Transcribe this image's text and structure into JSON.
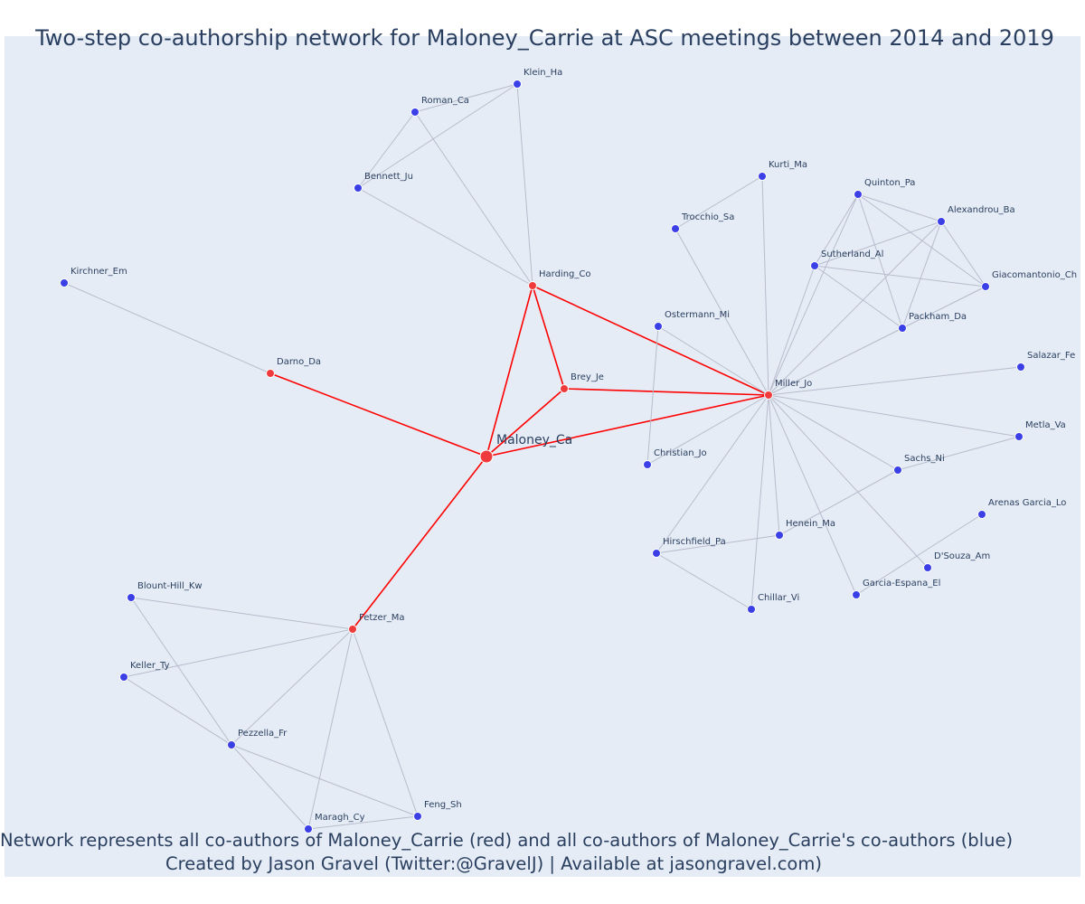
{
  "title": "Two-step co-authorship network for Maloney_Carrie at ASC meetings between 2014 and 2019",
  "footer": {
    "line1": "Network represents all co-authors of Maloney_Carrie (red) and all co-authors of Maloney_Carrie's co-authors (blue)",
    "line2": "Created by Jason Gravel (Twitter:@GravelJ) | Available at jasongravel.com)"
  },
  "colors": {
    "background": "#e5ecf6",
    "ego_edge": "#ff0000",
    "other_edge": "#b8bccc",
    "coauthor_node": "#ef3b3b",
    "second_step_node": "#3b3fe6",
    "text": "#2a3f5f"
  },
  "nodes": [
    {
      "id": "Maloney_Ca",
      "label": "Maloney_Ca",
      "group": "center"
    },
    {
      "id": "Harding_Co",
      "label": "Harding_Co",
      "group": "coauthor"
    },
    {
      "id": "Brey_Je",
      "label": "Brey_Je",
      "group": "coauthor"
    },
    {
      "id": "Miller_Jo",
      "label": "Miller_Jo",
      "group": "coauthor"
    },
    {
      "id": "Darno_Da",
      "label": "Darno_Da",
      "group": "coauthor"
    },
    {
      "id": "Fetzer_Ma",
      "label": "Fetzer_Ma",
      "group": "coauthor"
    },
    {
      "id": "Klein_Ha",
      "label": "Klein_Ha",
      "group": "second"
    },
    {
      "id": "Roman_Ca",
      "label": "Roman_Ca",
      "group": "second"
    },
    {
      "id": "Bennett_Ju",
      "label": "Bennett_Ju",
      "group": "second"
    },
    {
      "id": "Kirchner_Em",
      "label": "Kirchner_Em",
      "group": "second"
    },
    {
      "id": "Kurti_Ma",
      "label": "Kurti_Ma",
      "group": "second"
    },
    {
      "id": "Trocchio_Sa",
      "label": "Trocchio_Sa",
      "group": "second"
    },
    {
      "id": "Quinton_Pa",
      "label": "Quinton_Pa",
      "group": "second"
    },
    {
      "id": "Alexandrou_Ba",
      "label": "Alexandrou_Ba",
      "group": "second"
    },
    {
      "id": "Sutherland_Al",
      "label": "Sutherland_Al",
      "group": "second"
    },
    {
      "id": "Giacomantonio_Ch",
      "label": "Giacomantonio_Ch",
      "group": "second"
    },
    {
      "id": "Packham_Da",
      "label": "Packham_Da",
      "group": "second"
    },
    {
      "id": "Ostermann_Mi",
      "label": "Ostermann_Mi",
      "group": "second"
    },
    {
      "id": "Salazar_Fe",
      "label": "Salazar_Fe",
      "group": "second"
    },
    {
      "id": "Metla_Va",
      "label": "Metla_Va",
      "group": "second"
    },
    {
      "id": "Christian_Jo",
      "label": "Christian_Jo",
      "group": "second"
    },
    {
      "id": "Sachs_Ni",
      "label": "Sachs_Ni",
      "group": "second"
    },
    {
      "id": "Arenas_Garcia_Lo",
      "label": "Arenas Garcia_Lo",
      "group": "second"
    },
    {
      "id": "Henein_Ma",
      "label": "Henein_Ma",
      "group": "second"
    },
    {
      "id": "Hirschfield_Pa",
      "label": "Hirschfield_Pa",
      "group": "second"
    },
    {
      "id": "DSouza_Am",
      "label": "D'Souza_Am",
      "group": "second"
    },
    {
      "id": "Garcia_Espana_El",
      "label": "Garcia-Espana_El",
      "group": "second"
    },
    {
      "id": "Chillar_Vi",
      "label": "Chillar_Vi",
      "group": "second"
    },
    {
      "id": "Blount_Hill_Kw",
      "label": "Blount-Hill_Kw",
      "group": "second"
    },
    {
      "id": "Keller_Ty",
      "label": "Keller_Ty",
      "group": "second"
    },
    {
      "id": "Pezzella_Fr",
      "label": "Pezzella_Fr",
      "group": "second"
    },
    {
      "id": "Feng_Sh",
      "label": "Feng_Sh",
      "group": "second"
    },
    {
      "id": "Maragh_Cy",
      "label": "Maragh_Cy",
      "group": "second"
    }
  ],
  "edges": [
    [
      "Maloney_Ca",
      "Harding_Co"
    ],
    [
      "Maloney_Ca",
      "Brey_Je"
    ],
    [
      "Maloney_Ca",
      "Miller_Jo"
    ],
    [
      "Maloney_Ca",
      "Darno_Da"
    ],
    [
      "Maloney_Ca",
      "Fetzer_Ma"
    ],
    [
      "Harding_Co",
      "Brey_Je"
    ],
    [
      "Harding_Co",
      "Miller_Jo"
    ],
    [
      "Brey_Je",
      "Miller_Jo"
    ],
    [
      "Harding_Co",
      "Klein_Ha"
    ],
    [
      "Harding_Co",
      "Roman_Ca"
    ],
    [
      "Harding_Co",
      "Bennett_Ju"
    ],
    [
      "Klein_Ha",
      "Roman_Ca"
    ],
    [
      "Klein_Ha",
      "Bennett_Ju"
    ],
    [
      "Roman_Ca",
      "Bennett_Ju"
    ],
    [
      "Darno_Da",
      "Kirchner_Em"
    ],
    [
      "Kurti_Ma",
      "Trocchio_Sa"
    ],
    [
      "Kurti_Ma",
      "Miller_Jo"
    ],
    [
      "Trocchio_Sa",
      "Miller_Jo"
    ],
    [
      "Ostermann_Mi",
      "Miller_Jo"
    ],
    [
      "Ostermann_Mi",
      "Christian_Jo"
    ],
    [
      "Christian_Jo",
      "Miller_Jo"
    ],
    [
      "Quinton_Pa",
      "Alexandrou_Ba"
    ],
    [
      "Quinton_Pa",
      "Sutherland_Al"
    ],
    [
      "Quinton_Pa",
      "Giacomantonio_Ch"
    ],
    [
      "Quinton_Pa",
      "Packham_Da"
    ],
    [
      "Quinton_Pa",
      "Miller_Jo"
    ],
    [
      "Alexandrou_Ba",
      "Sutherland_Al"
    ],
    [
      "Alexandrou_Ba",
      "Giacomantonio_Ch"
    ],
    [
      "Alexandrou_Ba",
      "Packham_Da"
    ],
    [
      "Alexandrou_Ba",
      "Miller_Jo"
    ],
    [
      "Sutherland_Al",
      "Giacomantonio_Ch"
    ],
    [
      "Sutherland_Al",
      "Packham_Da"
    ],
    [
      "Sutherland_Al",
      "Miller_Jo"
    ],
    [
      "Giacomantonio_Ch",
      "Packham_Da"
    ],
    [
      "Giacomantonio_Ch",
      "Miller_Jo"
    ],
    [
      "Packham_Da",
      "Miller_Jo"
    ],
    [
      "Miller_Jo",
      "Salazar_Fe"
    ],
    [
      "Miller_Jo",
      "Metla_Va"
    ],
    [
      "Miller_Jo",
      "Sachs_Ni"
    ],
    [
      "Miller_Jo",
      "Henein_Ma"
    ],
    [
      "Miller_Jo",
      "Hirschfield_Pa"
    ],
    [
      "Miller_Jo",
      "Chillar_Vi"
    ],
    [
      "Miller_Jo",
      "DSouza_Am"
    ],
    [
      "Miller_Jo",
      "Garcia_Espana_El"
    ],
    [
      "Sachs_Ni",
      "Metla_Va"
    ],
    [
      "Sachs_Ni",
      "Henein_Ma"
    ],
    [
      "Hirschfield_Pa",
      "Henein_Ma"
    ],
    [
      "Hirschfield_Pa",
      "Chillar_Vi"
    ],
    [
      "Arenas_Garcia_Lo",
      "Garcia_Espana_El"
    ],
    [
      "Fetzer_Ma",
      "Blount_Hill_Kw"
    ],
    [
      "Fetzer_Ma",
      "Keller_Ty"
    ],
    [
      "Fetzer_Ma",
      "Pezzella_Fr"
    ],
    [
      "Fetzer_Ma",
      "Feng_Sh"
    ],
    [
      "Fetzer_Ma",
      "Maragh_Cy"
    ],
    [
      "Blount_Hill_Kw",
      "Pezzella_Fr"
    ],
    [
      "Keller_Ty",
      "Pezzella_Fr"
    ],
    [
      "Pezzella_Fr",
      "Feng_Sh"
    ],
    [
      "Pezzella_Fr",
      "Maragh_Cy"
    ],
    [
      "Maragh_Cy",
      "Feng_Sh"
    ]
  ]
}
